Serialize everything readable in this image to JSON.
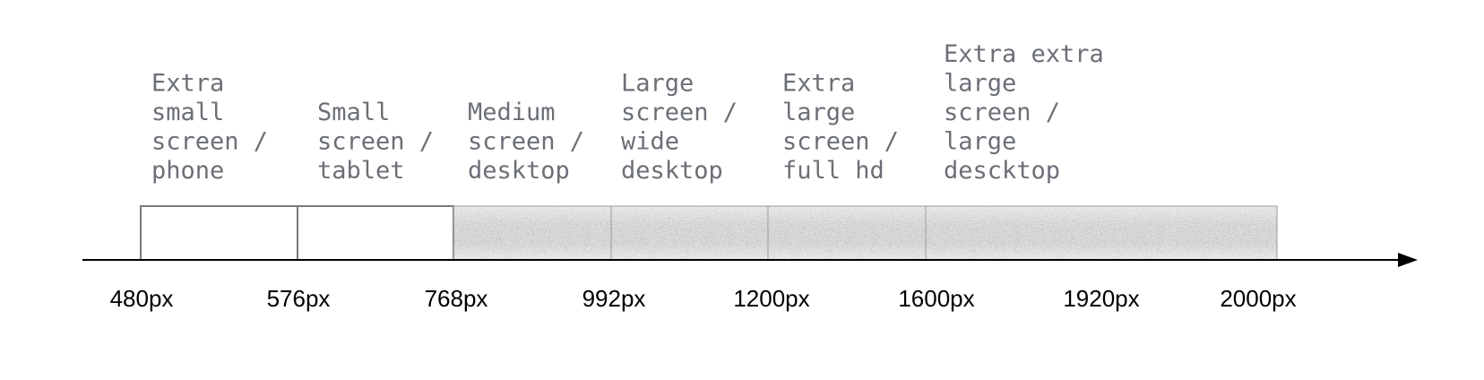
{
  "diagram": {
    "segments": [
      {
        "label_lines": [
          "Extra",
          "small",
          "screen /",
          "phone"
        ],
        "filled": false
      },
      {
        "label_lines": [
          "Small",
          "screen /",
          "tablet"
        ],
        "filled": false
      },
      {
        "label_lines": [
          "Medium",
          "screen /",
          "desktop"
        ],
        "filled": true
      },
      {
        "label_lines": [
          "Large",
          "screen /",
          "wide",
          "desktop"
        ],
        "filled": true
      },
      {
        "label_lines": [
          "Extra",
          "large",
          "screen /",
          "full hd"
        ],
        "filled": true
      },
      {
        "label_lines": [
          "Extra extra",
          "large",
          "screen /",
          "large",
          "descktop"
        ],
        "filled": true
      }
    ],
    "breakpoints": [
      "480px",
      "576px",
      "768px",
      "992px",
      "1200px",
      "1600px",
      "1920px",
      "2000px"
    ],
    "colors": {
      "label_text": "#6b6f76",
      "tick_text": "#000000",
      "axis": "#000000",
      "box_border": "#7a7a7a",
      "fill_dark": "#3a3a3a",
      "fill_light": "#9a9a9a"
    }
  }
}
